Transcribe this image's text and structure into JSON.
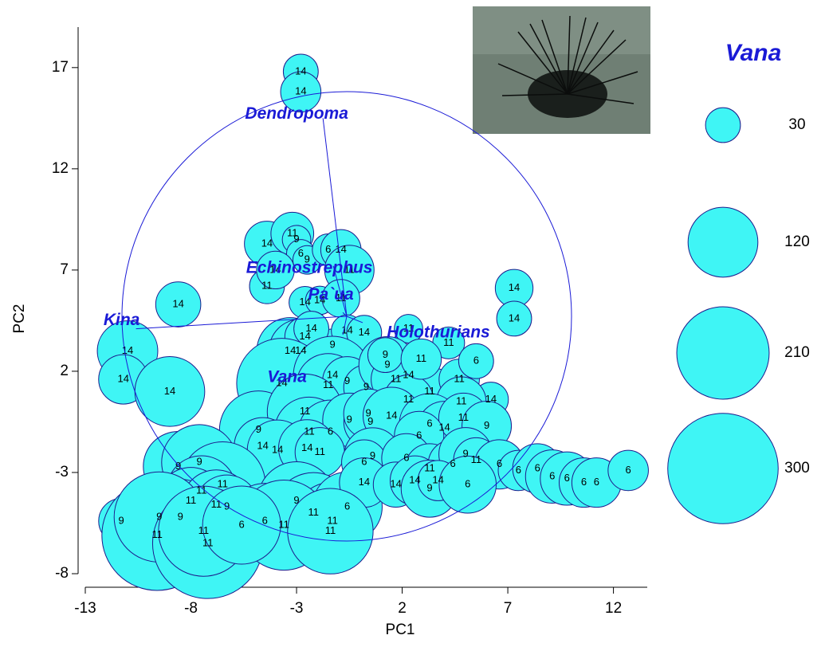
{
  "chart_data": {
    "type": "bubble",
    "x_label": "PC1",
    "y_label": "PC2",
    "xlim": [
      -13,
      13.6
    ],
    "ylim": [
      -8,
      19
    ],
    "xticks": [
      -13,
      -8,
      -3,
      2,
      7,
      12
    ],
    "yticks": [
      -8,
      -3,
      2,
      7,
      12,
      17
    ],
    "series": [
      {
        "color": "#3ff5f5",
        "edge_color": "#1c1c8c",
        "x": [
          -2.8,
          -2.8,
          -4.4,
          -3.2,
          -3,
          -2.8,
          -2.5,
          -1.5,
          -0.9,
          -0.5,
          -4.4,
          -4,
          -2.6,
          -1.9,
          -0.9,
          -8.6,
          -11,
          -11.2,
          -9,
          -3.3,
          -2.8,
          -2.6,
          -1.3,
          -2.3,
          -0.6,
          0.2,
          2.3,
          4.2,
          7.3,
          7.3,
          6.2,
          -3.7,
          -1.3,
          -1.5,
          -0.6,
          0.3,
          1.3,
          2.3,
          1.7,
          3.3,
          4.7,
          4.8,
          5.5,
          2.3,
          1.2,
          2.9,
          -4.8,
          -2.6,
          -2.4,
          -1.4,
          -0.5,
          0.5,
          0.4,
          1.5,
          3.3,
          4,
          4.9,
          6,
          2.8,
          -4.6,
          -3.9,
          -2.5,
          -1.9,
          0.6,
          0.2,
          2.2,
          3.3,
          4.4,
          5,
          5.5,
          6.6,
          7.5,
          8.4,
          9.1,
          9.8,
          10.6,
          11.2,
          12.7,
          -8.6,
          -7.6,
          -6.5,
          -7.5,
          -8,
          -8.5,
          -6.8,
          -6.3,
          -3,
          -4.5,
          -2.2,
          -1.3,
          -0.6,
          0.2,
          1.7,
          2.6,
          3.3,
          3.7,
          5.1,
          -11.3,
          -9.6,
          -9.5,
          -7.2,
          -7.4,
          -3.6,
          -1.4,
          -5.6
        ],
        "y": [
          16.8,
          15.8,
          8.3,
          8.8,
          8.5,
          7.8,
          7.5,
          8,
          8,
          7,
          6.2,
          7,
          5.4,
          5.5,
          5.6,
          5.3,
          3,
          1.6,
          1,
          3,
          3,
          3.7,
          3.3,
          4.1,
          4,
          3.9,
          4.1,
          3.4,
          6.1,
          4.6,
          0.6,
          1.4,
          1.8,
          1.3,
          1.5,
          1.2,
          2.3,
          1.8,
          1.6,
          1,
          1.6,
          0.5,
          2.5,
          0.6,
          2.8,
          2.6,
          -0.9,
          0,
          -1,
          -1,
          -0.4,
          -0.5,
          -0.1,
          -0.2,
          -0.6,
          -0.8,
          -0.3,
          -0.7,
          -1.2,
          -1.7,
          -1.9,
          -1.8,
          -2,
          -2.2,
          -2.5,
          -2.3,
          -2.8,
          -2.6,
          -2.1,
          -2.4,
          -2.6,
          -2.9,
          -2.8,
          -3.2,
          -3.3,
          -3.5,
          -3.5,
          -2.9,
          -2.7,
          -2.5,
          -3.6,
          -3.9,
          -4.4,
          -5.2,
          -4.6,
          -4.7,
          -4.4,
          -5.4,
          -5,
          -5.4,
          -4.7,
          -3.5,
          -3.6,
          -3.4,
          -3.8,
          -3.4,
          -3.6,
          -5.4,
          -6.1,
          -5.2,
          -6.5,
          -5.9,
          -5.6,
          -5.9,
          -5.6
        ],
        "sizes": [
          30,
          40,
          50,
          45,
          20,
          20,
          20,
          25,
          40,
          60,
          30,
          35,
          25,
          20,
          35,
          50,
          90,
          60,
          120,
          110,
          100,
          40,
          25,
          30,
          25,
          30,
          20,
          25,
          35,
          30,
          30,
          200,
          150,
          100,
          60,
          50,
          80,
          60,
          60,
          60,
          40,
          60,
          30,
          60,
          30,
          40,
          150,
          140,
          120,
          100,
          70,
          70,
          60,
          80,
          90,
          70,
          60,
          60,
          60,
          80,
          90,
          80,
          60,
          80,
          50,
          60,
          60,
          60,
          70,
          50,
          60,
          40,
          60,
          70,
          70,
          60,
          60,
          40,
          120,
          140,
          180,
          120,
          110,
          140,
          120,
          100,
          150,
          140,
          160,
          150,
          120,
          60,
          50,
          60,
          80,
          40,
          80,
          50,
          300,
          200,
          300,
          200,
          200,
          180,
          150
        ],
        "point_labels": [
          14,
          14,
          14,
          11,
          9,
          6,
          9,
          6,
          14,
          11,
          11,
          14,
          14,
          14,
          11,
          14,
          14,
          14,
          14,
          14,
          14,
          14,
          9,
          14,
          14,
          14,
          11,
          11,
          14,
          14,
          14,
          14,
          14,
          11,
          9,
          9,
          9,
          14,
          11,
          11,
          11,
          11,
          6,
          11,
          9,
          11,
          9,
          11,
          11,
          6,
          9,
          9,
          9,
          14,
          6,
          14,
          11,
          9,
          6,
          14,
          14,
          14,
          11,
          9,
          6,
          6,
          11,
          6,
          9,
          11,
          6,
          6,
          6,
          6,
          6,
          6,
          6,
          6,
          9,
          9,
          11,
          11,
          11,
          9,
          11,
          9,
          9,
          6,
          11,
          11,
          6,
          14,
          14,
          14,
          9,
          14,
          6,
          9,
          11,
          9,
          11,
          11,
          11,
          11,
          6
        ]
      }
    ],
    "vectors": [
      {
        "name": "Dendropoma",
        "x": -1.75,
        "y": 14.5
      },
      {
        "name": "Kina",
        "x": -10.6,
        "y": 4.1
      },
      {
        "name": "Echinostrephus",
        "x": -1.26,
        "y": 7.2
      },
      {
        "name": "Pa`ua",
        "x": -0.81,
        "y": 4.9
      },
      {
        "name": "Holothurians",
        "x": 0.13,
        "y": 4.4
      },
      {
        "name": "Vana",
        "x": -0.81,
        "y": 3.8
      }
    ],
    "vector_color": "#1a1ad6",
    "size_legend": {
      "title": "Vana",
      "values": [
        30,
        120,
        210,
        300
      ]
    }
  }
}
